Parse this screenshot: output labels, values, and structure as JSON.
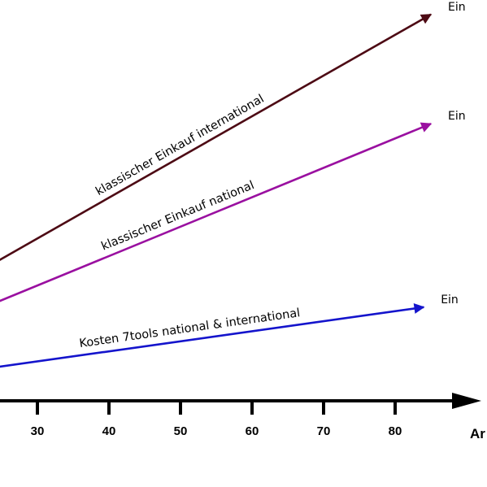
{
  "chart_data": {
    "type": "line",
    "xlabel": "Ar",
    "x_ticks": [
      30,
      40,
      50,
      60,
      70,
      80
    ],
    "xlim": [
      16,
      88
    ],
    "ylim": [
      0,
      100
    ],
    "series": [
      {
        "name": "klassischer Einkauf international",
        "end_label": "Ein",
        "color": "#4d0a14",
        "x": [
          16,
          85
        ],
        "y": [
          27,
          99
        ]
      },
      {
        "name": "klassischer Einkauf national",
        "end_label": "Ein",
        "color": "#9a10a0",
        "x": [
          16,
          85
        ],
        "y": [
          19,
          71
        ]
      },
      {
        "name": "Kosten 7tools national & international",
        "end_label": "Ein",
        "color": "#1414cc",
        "x": [
          16,
          84
        ],
        "y": [
          6.5,
          24
        ]
      }
    ]
  }
}
